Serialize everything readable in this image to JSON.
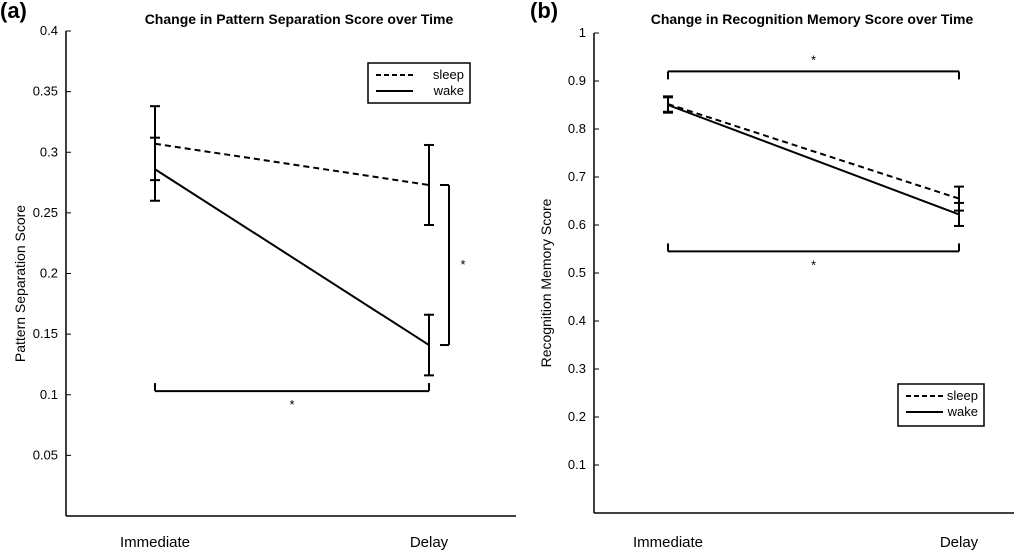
{
  "chart_data": [
    {
      "panel_label": "(a)",
      "type": "line",
      "title": "Change in Pattern Separation Score over Time",
      "xlabel": "",
      "ylabel": "Pattern Separation Score",
      "categories": [
        "Immediate",
        "Delay"
      ],
      "ylim": [
        0,
        0.4
      ],
      "yticks": [
        "0.05",
        "0.1",
        "0.15",
        "0.2",
        "0.25",
        "0.3",
        "0.35",
        "0.4"
      ],
      "legend_position": "top-right",
      "series": [
        {
          "name": "sleep",
          "style": "dashed",
          "values": [
            0.307,
            0.273
          ],
          "error": [
            [
              0.277,
              0.338
            ],
            [
              0.24,
              0.306
            ]
          ]
        },
        {
          "name": "wake",
          "style": "solid",
          "values": [
            0.286,
            0.141
          ],
          "error": [
            [
              0.26,
              0.312
            ],
            [
              0.116,
              0.166
            ]
          ]
        }
      ],
      "annotations": [
        {
          "text": "*",
          "type": "bracket-horizontal",
          "between": [
            "Immediate",
            "Delay"
          ],
          "y": 0.103
        },
        {
          "text": "*",
          "type": "bracket-vertical",
          "at": "Delay",
          "between_values": [
            0.141,
            0.273
          ]
        }
      ]
    },
    {
      "panel_label": "(b)",
      "type": "line",
      "title": "Change in Recognition Memory Score over Time",
      "xlabel": "",
      "ylabel": "Recognition Memory Score",
      "categories": [
        "Immediate",
        "Delay"
      ],
      "ylim": [
        0,
        1
      ],
      "yticks": [
        "0.1",
        "0.2",
        "0.3",
        "0.4",
        "0.5",
        "0.6",
        "0.7",
        "0.8",
        "0.9",
        "1"
      ],
      "legend_position": "bottom-right",
      "series": [
        {
          "name": "sleep",
          "style": "dashed",
          "values": [
            0.852,
            0.655
          ],
          "error": [
            [
              0.836,
              0.868
            ],
            [
              0.63,
              0.68
            ]
          ]
        },
        {
          "name": "wake",
          "style": "solid",
          "values": [
            0.85,
            0.622
          ],
          "error": [
            [
              0.834,
              0.866
            ],
            [
              0.598,
              0.646
            ]
          ]
        }
      ],
      "annotations": [
        {
          "text": "*",
          "type": "bracket-horizontal",
          "between": [
            "Immediate",
            "Delay"
          ],
          "y": 0.92
        },
        {
          "text": "*",
          "type": "bracket-horizontal",
          "between": [
            "Immediate",
            "Delay"
          ],
          "y": 0.545
        }
      ]
    }
  ]
}
